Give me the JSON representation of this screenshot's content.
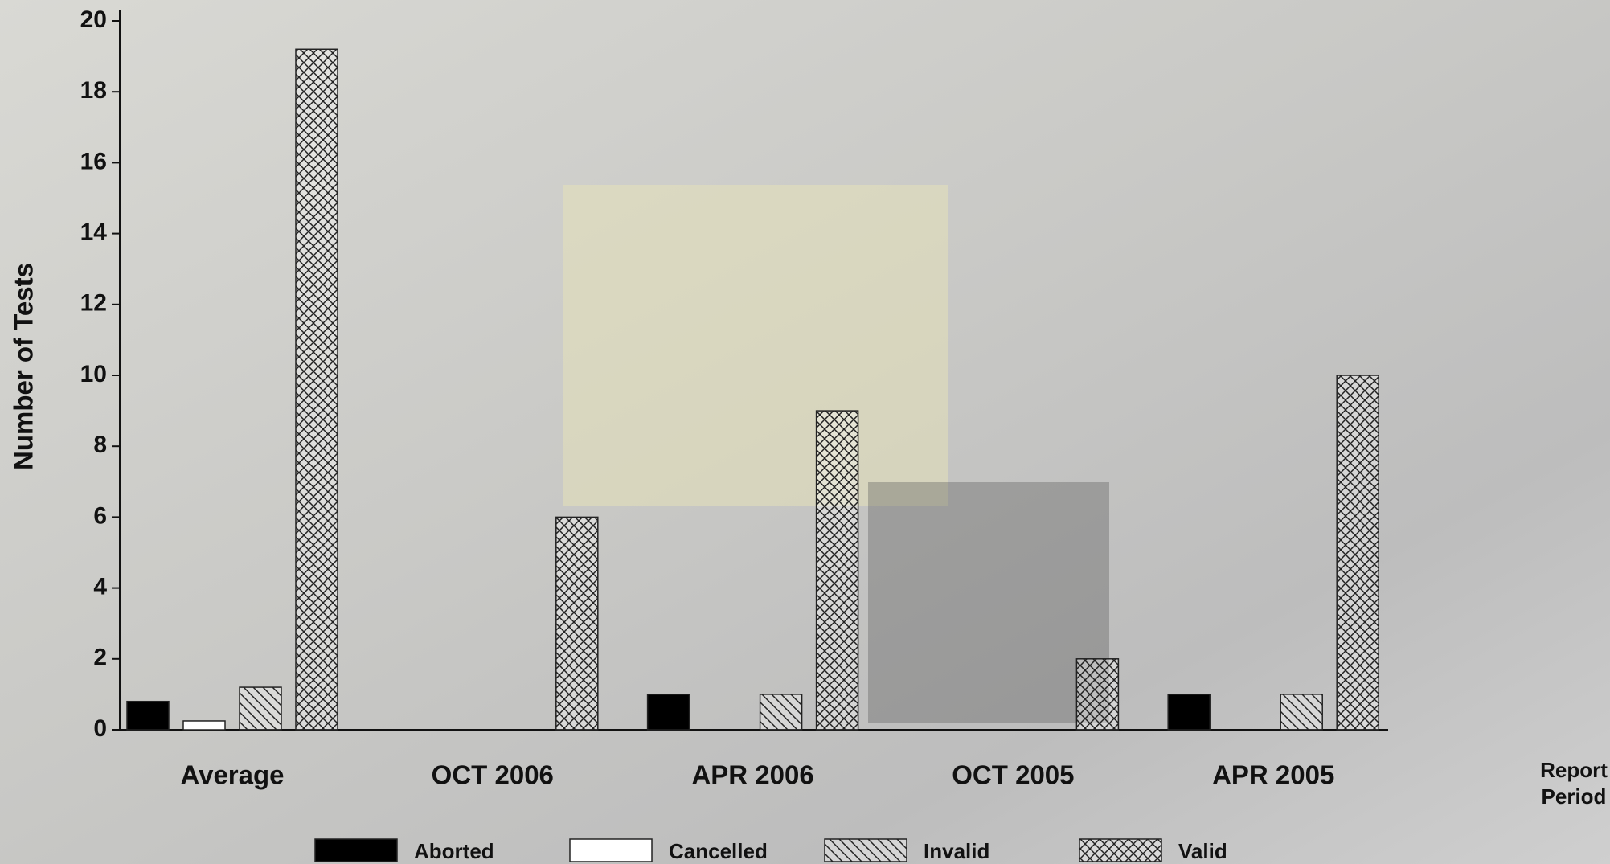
{
  "chart_data": {
    "type": "bar",
    "y_label": "Number of Tests",
    "x_label": "Report Period",
    "categories": [
      "Average",
      "OCT 2006",
      "APR 2006",
      "OCT 2005",
      "APR 2005"
    ],
    "series": [
      {
        "name": "Aborted",
        "color": "#000000",
        "hatch": "none",
        "values": [
          0.8,
          0,
          1,
          0,
          1
        ]
      },
      {
        "name": "Cancelled",
        "color": "#ffffff",
        "hatch": "none",
        "values": [
          0.25,
          0,
          0,
          0,
          0
        ]
      },
      {
        "name": "Invalid",
        "color": "#ffffff",
        "hatch": "diagonal",
        "values": [
          1.2,
          0,
          1,
          0,
          1
        ]
      },
      {
        "name": "Valid",
        "color": "#ffffff",
        "hatch": "crosshatch",
        "values": [
          19.2,
          6,
          9,
          2,
          10
        ]
      }
    ],
    "ylim": [
      0,
      20
    ],
    "yticks": [
      0,
      2,
      4,
      6,
      8,
      10,
      12,
      14,
      16,
      18,
      20
    ]
  }
}
